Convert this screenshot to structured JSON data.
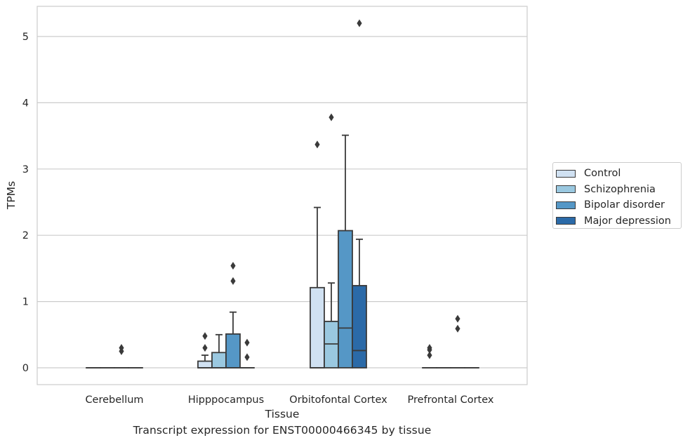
{
  "caption": "Transcript expression for ENST00000466345 by tissue",
  "chart_data": {
    "type": "box",
    "xlabel": "Tissue",
    "ylabel": "TPMs",
    "ylim": [
      -0.25,
      5.45
    ],
    "yticks": [
      "0",
      "1",
      "2",
      "3",
      "4",
      "5"
    ],
    "grid": true,
    "legend_position": "right",
    "categories": [
      "Cerebellum",
      "Hipppocampus",
      "Orbitofontal Cortex",
      "Prefrontal Cortex"
    ],
    "series": [
      {
        "name": "Control",
        "color": "#d0e1f2",
        "boxes": [
          {
            "q1": 0,
            "median": 0,
            "q3": 0,
            "whislo": 0,
            "whishi": 0,
            "fliers": []
          },
          {
            "q1": 0,
            "median": 0,
            "q3": 0.1,
            "whislo": 0,
            "whishi": 0.19,
            "fliers": [
              0.3,
              0.48
            ]
          },
          {
            "q1": 0,
            "median": 0,
            "q3": 1.21,
            "whislo": 0,
            "whishi": 2.42,
            "fliers": [
              3.37
            ]
          },
          {
            "q1": 0,
            "median": 0,
            "q3": 0,
            "whislo": 0,
            "whishi": 0,
            "fliers": [
              0.19,
              0.27,
              0.3
            ]
          }
        ]
      },
      {
        "name": "Schizophrenia",
        "color": "#9ac8e0",
        "boxes": [
          {
            "q1": 0,
            "median": 0,
            "q3": 0,
            "whislo": 0,
            "whishi": 0,
            "fliers": []
          },
          {
            "q1": 0,
            "median": 0,
            "q3": 0.23,
            "whislo": 0,
            "whishi": 0.5,
            "fliers": []
          },
          {
            "q1": 0,
            "median": 0.36,
            "q3": 0.7,
            "whislo": 0,
            "whishi": 1.28,
            "fliers": [
              3.78
            ]
          },
          {
            "q1": 0,
            "median": 0,
            "q3": 0,
            "whislo": 0,
            "whishi": 0,
            "fliers": []
          }
        ]
      },
      {
        "name": "Bipolar disorder",
        "color": "#5597c6",
        "boxes": [
          {
            "q1": 0,
            "median": 0,
            "q3": 0,
            "whislo": 0,
            "whishi": 0,
            "fliers": [
              0.25,
              0.3
            ]
          },
          {
            "q1": 0,
            "median": 0,
            "q3": 0.51,
            "whislo": 0,
            "whishi": 0.84,
            "fliers": [
              1.31,
              1.54
            ]
          },
          {
            "q1": 0,
            "median": 0.6,
            "q3": 2.07,
            "whislo": 0,
            "whishi": 3.51,
            "fliers": []
          },
          {
            "q1": 0,
            "median": 0,
            "q3": 0,
            "whislo": 0,
            "whishi": 0,
            "fliers": [
              0.59,
              0.74
            ]
          }
        ]
      },
      {
        "name": "Major depression",
        "color": "#2b6aa8",
        "boxes": [
          {
            "q1": 0,
            "median": 0,
            "q3": 0,
            "whislo": 0,
            "whishi": 0,
            "fliers": []
          },
          {
            "q1": 0,
            "median": 0,
            "q3": 0,
            "whislo": 0,
            "whishi": 0,
            "fliers": [
              0.16,
              0.38
            ]
          },
          {
            "q1": 0,
            "median": 0.26,
            "q3": 1.24,
            "whislo": 0,
            "whishi": 1.94,
            "fliers": [
              5.2
            ]
          },
          {
            "q1": 0,
            "median": 0,
            "q3": 0,
            "whislo": 0,
            "whishi": 0,
            "fliers": []
          }
        ]
      }
    ]
  }
}
